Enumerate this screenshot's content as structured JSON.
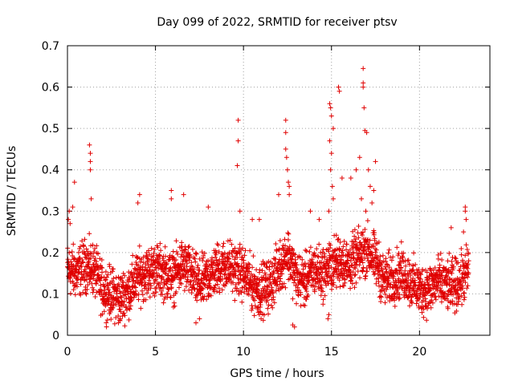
{
  "chart_data": {
    "type": "scatter",
    "title": "Day 099 of 2022, SRMTID for receiver ptsv",
    "xlabel": "GPS time / hours",
    "ylabel": "SRMTID / TECUs",
    "xlim": [
      0,
      24
    ],
    "ylim": [
      0,
      0.7
    ],
    "xticks": [
      0,
      5,
      10,
      15,
      20
    ],
    "yticks": [
      0,
      0.1,
      0.2,
      0.3,
      0.4,
      0.5,
      0.6,
      0.7
    ],
    "xtick_labels": [
      "0",
      "5",
      "10",
      "15",
      "20"
    ],
    "ytick_labels": [
      "0",
      "0.1",
      "0.2",
      "0.3",
      "0.4",
      "0.5",
      "0.6",
      "0.7"
    ],
    "grid": true,
    "marker": "plus",
    "color": "#e00000",
    "baseline_profile": [
      [
        0.0,
        0.16
      ],
      [
        0.5,
        0.15
      ],
      [
        1.0,
        0.17
      ],
      [
        1.5,
        0.16
      ],
      [
        2.0,
        0.11
      ],
      [
        2.5,
        0.1
      ],
      [
        3.0,
        0.09
      ],
      [
        3.5,
        0.11
      ],
      [
        4.0,
        0.14
      ],
      [
        4.5,
        0.15
      ],
      [
        5.0,
        0.16
      ],
      [
        5.5,
        0.15
      ],
      [
        6.0,
        0.14
      ],
      [
        6.5,
        0.17
      ],
      [
        7.0,
        0.15
      ],
      [
        7.5,
        0.12
      ],
      [
        8.0,
        0.14
      ],
      [
        8.5,
        0.16
      ],
      [
        9.0,
        0.17
      ],
      [
        9.5,
        0.16
      ],
      [
        10.0,
        0.15
      ],
      [
        10.5,
        0.12
      ],
      [
        11.0,
        0.11
      ],
      [
        11.5,
        0.12
      ],
      [
        12.0,
        0.16
      ],
      [
        12.5,
        0.2
      ],
      [
        13.0,
        0.14
      ],
      [
        13.5,
        0.13
      ],
      [
        14.0,
        0.16
      ],
      [
        14.5,
        0.15
      ],
      [
        15.0,
        0.17
      ],
      [
        15.5,
        0.18
      ],
      [
        16.0,
        0.17
      ],
      [
        16.5,
        0.19
      ],
      [
        17.0,
        0.21
      ],
      [
        17.5,
        0.18
      ],
      [
        18.0,
        0.13
      ],
      [
        18.5,
        0.14
      ],
      [
        19.0,
        0.15
      ],
      [
        19.5,
        0.13
      ],
      [
        20.0,
        0.11
      ],
      [
        20.5,
        0.11
      ],
      [
        21.0,
        0.13
      ],
      [
        21.5,
        0.12
      ],
      [
        22.0,
        0.12
      ],
      [
        22.5,
        0.14
      ],
      [
        22.8,
        0.16
      ]
    ],
    "peak_points": [
      [
        0.05,
        0.28
      ],
      [
        0.1,
        0.3
      ],
      [
        0.15,
        0.27
      ],
      [
        1.25,
        0.46
      ],
      [
        1.3,
        0.44
      ],
      [
        1.3,
        0.42
      ],
      [
        1.3,
        0.4
      ],
      [
        1.35,
        0.33
      ],
      [
        0.4,
        0.37
      ],
      [
        0.3,
        0.31
      ],
      [
        4.1,
        0.34
      ],
      [
        4.0,
        0.32
      ],
      [
        5.9,
        0.35
      ],
      [
        5.9,
        0.33
      ],
      [
        6.6,
        0.34
      ],
      [
        8.0,
        0.31
      ],
      [
        9.7,
        0.52
      ],
      [
        9.7,
        0.47
      ],
      [
        9.65,
        0.41
      ],
      [
        9.8,
        0.3
      ],
      [
        10.5,
        0.28
      ],
      [
        10.9,
        0.28
      ],
      [
        12.0,
        0.34
      ],
      [
        12.4,
        0.52
      ],
      [
        12.4,
        0.49
      ],
      [
        12.4,
        0.45
      ],
      [
        12.45,
        0.43
      ],
      [
        12.5,
        0.4
      ],
      [
        12.55,
        0.37
      ],
      [
        12.6,
        0.36
      ],
      [
        12.6,
        0.34
      ],
      [
        13.8,
        0.3
      ],
      [
        14.3,
        0.28
      ],
      [
        14.9,
        0.56
      ],
      [
        14.95,
        0.55
      ],
      [
        15.0,
        0.53
      ],
      [
        15.1,
        0.5
      ],
      [
        14.9,
        0.47
      ],
      [
        15.0,
        0.44
      ],
      [
        14.95,
        0.4
      ],
      [
        15.05,
        0.36
      ],
      [
        15.1,
        0.33
      ],
      [
        14.85,
        0.3
      ],
      [
        15.4,
        0.6
      ],
      [
        15.45,
        0.59
      ],
      [
        15.6,
        0.38
      ],
      [
        16.1,
        0.38
      ],
      [
        16.4,
        0.4
      ],
      [
        16.6,
        0.43
      ],
      [
        16.8,
        0.645
      ],
      [
        16.8,
        0.61
      ],
      [
        16.8,
        0.6
      ],
      [
        16.85,
        0.55
      ],
      [
        16.9,
        0.495
      ],
      [
        17.0,
        0.49
      ],
      [
        17.1,
        0.4
      ],
      [
        17.2,
        0.36
      ],
      [
        17.3,
        0.32
      ],
      [
        17.5,
        0.42
      ],
      [
        17.4,
        0.35
      ],
      [
        16.95,
        0.3
      ],
      [
        16.7,
        0.33
      ],
      [
        22.6,
        0.31
      ],
      [
        22.6,
        0.3
      ],
      [
        22.65,
        0.28
      ],
      [
        21.8,
        0.26
      ],
      [
        22.5,
        0.25
      ]
    ],
    "low_points": [
      [
        2.9,
        0.03
      ],
      [
        3.0,
        0.04
      ],
      [
        7.3,
        0.03
      ],
      [
        7.5,
        0.04
      ],
      [
        12.8,
        0.025
      ],
      [
        12.9,
        0.02
      ],
      [
        14.8,
        0.04
      ],
      [
        14.85,
        0.05
      ],
      [
        10.9,
        0.05
      ],
      [
        11.0,
        0.04
      ]
    ]
  }
}
